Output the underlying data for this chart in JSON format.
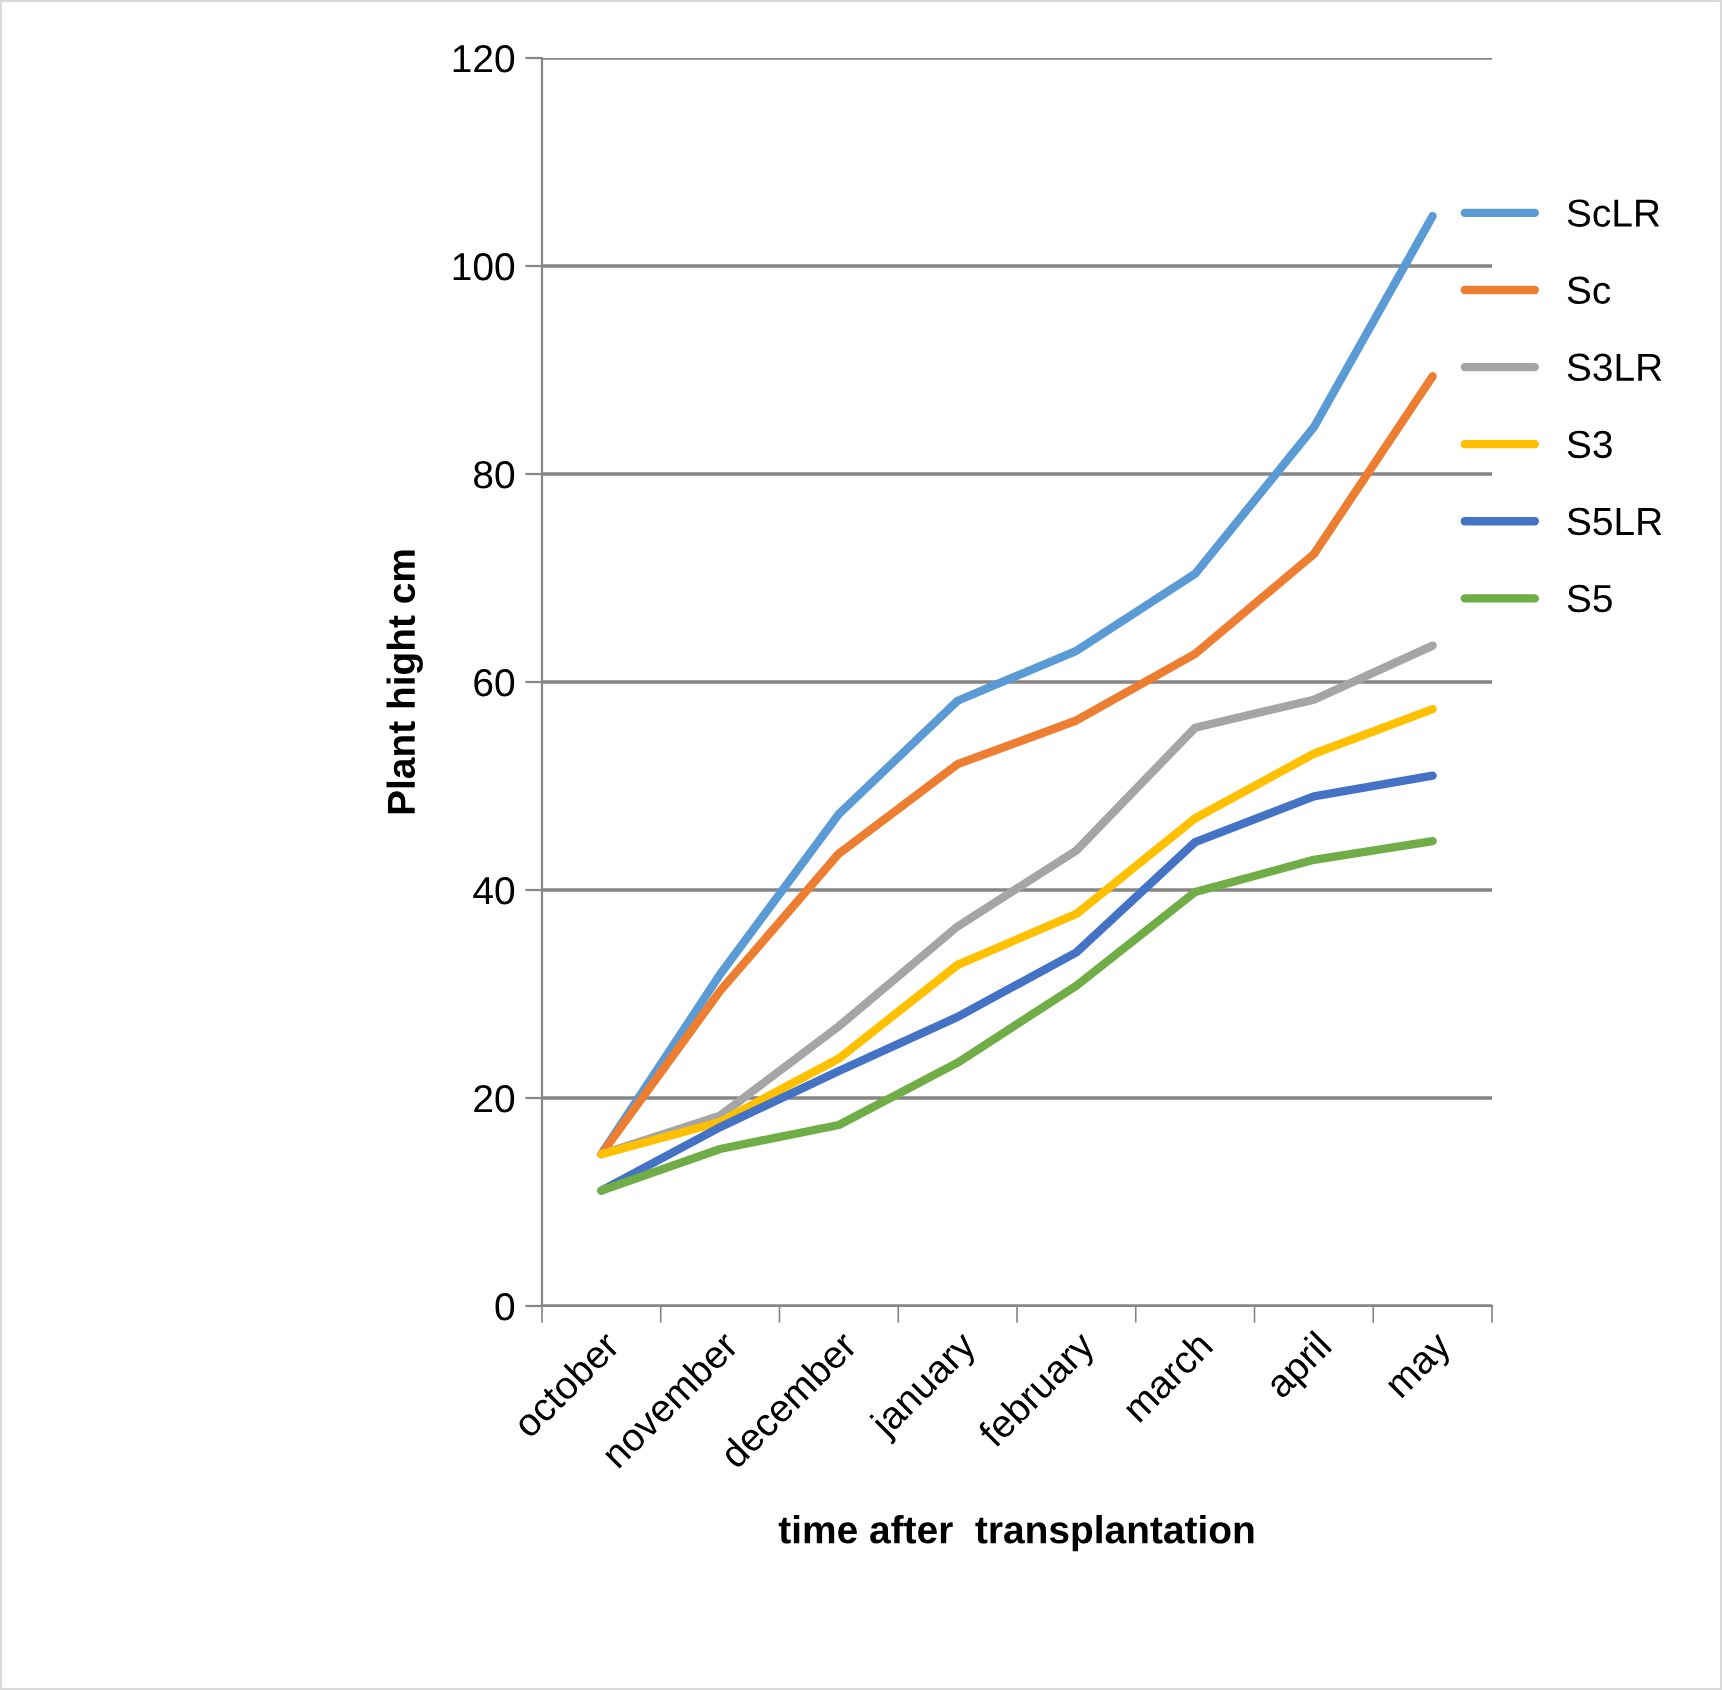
{
  "chart_data": {
    "type": "line",
    "xlabel": "time after  transplantation",
    "ylabel": "Plant hight cm",
    "categories": [
      "october",
      "november",
      "december",
      "january",
      "february",
      "march",
      "april",
      "may"
    ],
    "series": [
      {
        "name": "ScLR",
        "color": "#5b9bd5",
        "values": [
          14.6,
          31.9,
          47.3,
          58.2,
          63.0,
          70.4,
          84.5,
          104.8
        ]
      },
      {
        "name": "Sc",
        "color": "#ed7d31",
        "values": [
          14.6,
          30.3,
          43.5,
          52.1,
          56.3,
          62.7,
          72.3,
          89.4
        ]
      },
      {
        "name": "S3LR",
        "color": "#a5a5a5",
        "values": [
          14.6,
          18.3,
          26.9,
          36.5,
          43.8,
          55.6,
          58.3,
          63.5
        ]
      },
      {
        "name": "S3",
        "color": "#ffc000",
        "values": [
          14.6,
          17.7,
          23.8,
          32.8,
          37.7,
          46.9,
          53.1,
          57.4
        ]
      },
      {
        "name": "S5LR",
        "color": "#4472c4",
        "values": [
          11.1,
          17.2,
          22.6,
          27.8,
          34.0,
          44.6,
          49.0,
          51.0
        ]
      },
      {
        "name": "S5",
        "color": "#70ad47",
        "values": [
          11.1,
          15.1,
          17.4,
          23.4,
          30.8,
          39.8,
          42.9,
          44.7
        ]
      }
    ],
    "ylim": [
      0,
      120
    ],
    "yticks": [
      0,
      20,
      40,
      60,
      80,
      100,
      120
    ],
    "grid": "y",
    "legend": "right",
    "marker": "none",
    "line_style": "solid"
  }
}
